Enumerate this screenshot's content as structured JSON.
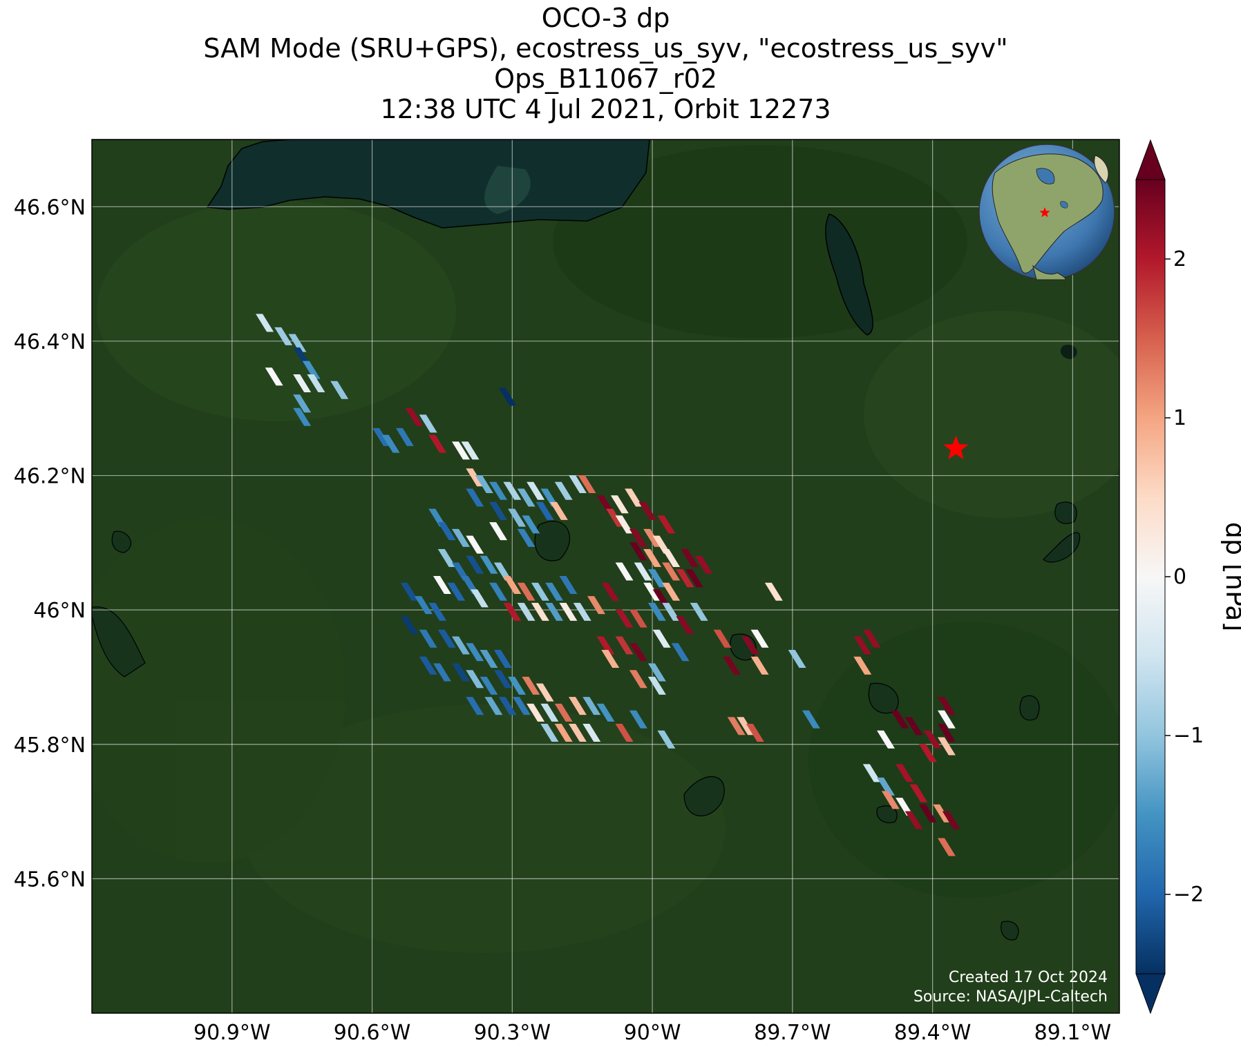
{
  "title": {
    "line1": "OCO-3 dp",
    "line2": "SAM Mode (SRU+GPS), ecostress_us_syv, \"ecostress_us_syv\"",
    "line3": "Ops_B11067_r02",
    "line4": "12:38 UTC 4 Jul 2021, Orbit 12273"
  },
  "credits": {
    "created": "Created 17 Oct 2024",
    "source": "Source: NASA/JPL-Caltech"
  },
  "map": {
    "lon_range": [
      -91.2,
      -89.0
    ],
    "lat_range": [
      45.4,
      46.7
    ],
    "lon_ticks": [
      {
        "value": -90.9,
        "label": "90.9°W"
      },
      {
        "value": -90.6,
        "label": "90.6°W"
      },
      {
        "value": -90.3,
        "label": "90.3°W"
      },
      {
        "value": -90.0,
        "label": "90°W"
      },
      {
        "value": -89.7,
        "label": "89.7°W"
      },
      {
        "value": -89.4,
        "label": "89.4°W"
      },
      {
        "value": -89.1,
        "label": "89.1°W"
      }
    ],
    "lat_ticks": [
      {
        "value": 46.6,
        "label": "46.6°N"
      },
      {
        "value": 46.4,
        "label": "46.4°N"
      },
      {
        "value": 46.2,
        "label": "46.2°N"
      },
      {
        "value": 46.0,
        "label": "46°N"
      },
      {
        "value": 45.8,
        "label": "45.8°N"
      },
      {
        "value": 45.6,
        "label": "45.6°N"
      }
    ],
    "gridlines": true,
    "basemap": "satellite imagery (forest, lakes, Lake Superior shoreline)",
    "target_marker": {
      "lon": -89.35,
      "lat": 46.24,
      "symbol": "red-star"
    },
    "inset_globe": {
      "location": "top-right",
      "content": "North America with red star"
    }
  },
  "colorbar": {
    "label": "dp [hPa]",
    "colormap": "RdBu_r",
    "range": [
      -2.5,
      2.5
    ],
    "ticks": [
      {
        "value": 2,
        "label": "2"
      },
      {
        "value": 1,
        "label": "1"
      },
      {
        "value": 0,
        "label": "0"
      },
      {
        "value": -1,
        "label": "−1"
      },
      {
        "value": -2,
        "label": "−2"
      }
    ],
    "extend": "both"
  },
  "colors": {
    "star": "#ff0000",
    "land_dark": "#1f3d18",
    "lake": "#0f2e2c"
  },
  "chart_data": {
    "type": "map-footprints",
    "variable": "dp",
    "units": "hPa",
    "soundings": [
      {
        "lon": -90.83,
        "lat": 46.42,
        "v": -0.5
      },
      {
        "lon": -90.79,
        "lat": 46.4,
        "v": -0.9
      },
      {
        "lon": -90.76,
        "lat": 46.39,
        "v": -1.0
      },
      {
        "lon": -90.81,
        "lat": 46.34,
        "v": 0.0
      },
      {
        "lon": -90.75,
        "lat": 46.37,
        "v": -2.4
      },
      {
        "lon": -90.73,
        "lat": 46.35,
        "v": -1.5
      },
      {
        "lon": -90.75,
        "lat": 46.33,
        "v": -0.2
      },
      {
        "lon": -90.72,
        "lat": 46.33,
        "v": -0.6
      },
      {
        "lon": -90.75,
        "lat": 46.3,
        "v": -1.3
      },
      {
        "lon": -90.75,
        "lat": 46.28,
        "v": -1.6
      },
      {
        "lon": -90.67,
        "lat": 46.32,
        "v": -1.0
      },
      {
        "lon": -90.31,
        "lat": 46.31,
        "v": -2.5
      },
      {
        "lon": -90.58,
        "lat": 46.25,
        "v": -1.9
      },
      {
        "lon": -90.56,
        "lat": 46.24,
        "v": -1.6
      },
      {
        "lon": -90.53,
        "lat": 46.25,
        "v": -1.8
      },
      {
        "lon": -90.51,
        "lat": 46.28,
        "v": 2.2
      },
      {
        "lon": -90.48,
        "lat": 46.27,
        "v": -0.9
      },
      {
        "lon": -90.46,
        "lat": 46.24,
        "v": 2.0
      },
      {
        "lon": -90.41,
        "lat": 46.23,
        "v": 0.0
      },
      {
        "lon": -90.39,
        "lat": 46.23,
        "v": -0.4
      },
      {
        "lon": -90.38,
        "lat": 46.19,
        "v": 0.7
      },
      {
        "lon": -90.36,
        "lat": 46.18,
        "v": -1.2
      },
      {
        "lon": -90.38,
        "lat": 46.16,
        "v": -1.9
      },
      {
        "lon": -90.33,
        "lat": 46.17,
        "v": -1.6
      },
      {
        "lon": -90.3,
        "lat": 46.17,
        "v": -0.8
      },
      {
        "lon": -90.27,
        "lat": 46.16,
        "v": -1.2
      },
      {
        "lon": -90.25,
        "lat": 46.17,
        "v": -0.5
      },
      {
        "lon": -90.22,
        "lat": 46.16,
        "v": -1.5
      },
      {
        "lon": -90.19,
        "lat": 46.17,
        "v": -0.9
      },
      {
        "lon": -90.16,
        "lat": 46.18,
        "v": -0.7
      },
      {
        "lon": -90.14,
        "lat": 46.18,
        "v": 1.4
      },
      {
        "lon": -90.33,
        "lat": 46.14,
        "v": -2.2
      },
      {
        "lon": -90.29,
        "lat": 46.13,
        "v": -1.1
      },
      {
        "lon": -90.26,
        "lat": 46.12,
        "v": -1.5
      },
      {
        "lon": -90.23,
        "lat": 46.14,
        "v": -2.0
      },
      {
        "lon": -90.2,
        "lat": 46.14,
        "v": 0.8
      },
      {
        "lon": -90.27,
        "lat": 46.1,
        "v": -1.7
      },
      {
        "lon": -90.33,
        "lat": 46.11,
        "v": 0.0
      },
      {
        "lon": -90.1,
        "lat": 46.15,
        "v": 2.4
      },
      {
        "lon": -90.07,
        "lat": 46.15,
        "v": 0.3
      },
      {
        "lon": -90.04,
        "lat": 46.16,
        "v": 0.6
      },
      {
        "lon": -90.01,
        "lat": 46.14,
        "v": 2.3
      },
      {
        "lon": -90.08,
        "lat": 46.13,
        "v": 1.8
      },
      {
        "lon": -90.06,
        "lat": 46.12,
        "v": 0.2
      },
      {
        "lon": -89.97,
        "lat": 46.12,
        "v": 2.0
      },
      {
        "lon": -90.03,
        "lat": 46.1,
        "v": 2.3
      },
      {
        "lon": -90.0,
        "lat": 46.1,
        "v": 1.2
      },
      {
        "lon": -89.98,
        "lat": 46.09,
        "v": 0.5
      },
      {
        "lon": -90.03,
        "lat": 46.08,
        "v": 2.5
      },
      {
        "lon": -90.0,
        "lat": 46.07,
        "v": 1.0
      },
      {
        "lon": -89.96,
        "lat": 46.07,
        "v": 0.3
      },
      {
        "lon": -89.92,
        "lat": 46.07,
        "v": 2.4
      },
      {
        "lon": -89.89,
        "lat": 46.06,
        "v": 2.2
      },
      {
        "lon": -90.06,
        "lat": 46.05,
        "v": 0.0
      },
      {
        "lon": -90.02,
        "lat": 46.05,
        "v": -0.4
      },
      {
        "lon": -89.99,
        "lat": 46.04,
        "v": -1.5
      },
      {
        "lon": -89.96,
        "lat": 46.05,
        "v": 1.3
      },
      {
        "lon": -89.93,
        "lat": 46.04,
        "v": 1.9
      },
      {
        "lon": -89.91,
        "lat": 46.04,
        "v": 2.6
      },
      {
        "lon": -90.0,
        "lat": 46.02,
        "v": 0.0
      },
      {
        "lon": -89.98,
        "lat": 46.01,
        "v": 2.6
      },
      {
        "lon": -89.96,
        "lat": 46.02,
        "v": 0.9
      },
      {
        "lon": -90.46,
        "lat": 46.13,
        "v": -1.6
      },
      {
        "lon": -90.44,
        "lat": 46.11,
        "v": -2.0
      },
      {
        "lon": -90.41,
        "lat": 46.1,
        "v": -1.2
      },
      {
        "lon": -90.38,
        "lat": 46.09,
        "v": 0.0
      },
      {
        "lon": -90.44,
        "lat": 46.07,
        "v": -1.0
      },
      {
        "lon": -90.41,
        "lat": 46.05,
        "v": -1.9
      },
      {
        "lon": -90.38,
        "lat": 46.06,
        "v": -2.2
      },
      {
        "lon": -90.35,
        "lat": 46.06,
        "v": -1.5
      },
      {
        "lon": -90.32,
        "lat": 46.05,
        "v": -1.0
      },
      {
        "lon": -90.45,
        "lat": 46.03,
        "v": 0.0
      },
      {
        "lon": -90.42,
        "lat": 46.02,
        "v": -2.0
      },
      {
        "lon": -90.39,
        "lat": 46.03,
        "v": -1.8
      },
      {
        "lon": -90.37,
        "lat": 46.01,
        "v": -0.6
      },
      {
        "lon": -90.33,
        "lat": 46.02,
        "v": -1.7
      },
      {
        "lon": -90.3,
        "lat": 46.03,
        "v": 1.0
      },
      {
        "lon": -90.27,
        "lat": 46.02,
        "v": 1.4
      },
      {
        "lon": -90.24,
        "lat": 46.02,
        "v": -1.0
      },
      {
        "lon": -90.21,
        "lat": 46.02,
        "v": -1.6
      },
      {
        "lon": -90.18,
        "lat": 46.03,
        "v": -1.8
      },
      {
        "lon": -90.3,
        "lat": 45.99,
        "v": 2.0
      },
      {
        "lon": -90.27,
        "lat": 45.99,
        "v": -0.7
      },
      {
        "lon": -90.24,
        "lat": 45.99,
        "v": 0.4
      },
      {
        "lon": -90.21,
        "lat": 45.99,
        "v": -1.4
      },
      {
        "lon": -90.18,
        "lat": 45.99,
        "v": 0.2
      },
      {
        "lon": -90.15,
        "lat": 45.99,
        "v": -0.7
      },
      {
        "lon": -90.12,
        "lat": 46.0,
        "v": 1.2
      },
      {
        "lon": -90.09,
        "lat": 46.02,
        "v": 2.2
      },
      {
        "lon": -90.06,
        "lat": 45.98,
        "v": 2.1
      },
      {
        "lon": -90.03,
        "lat": 45.98,
        "v": 1.6
      },
      {
        "lon": -89.99,
        "lat": 45.99,
        "v": -1.6
      },
      {
        "lon": -89.96,
        "lat": 45.99,
        "v": -0.9
      },
      {
        "lon": -89.93,
        "lat": 45.97,
        "v": 2.3
      },
      {
        "lon": -89.9,
        "lat": 45.99,
        "v": -1.0
      },
      {
        "lon": -89.98,
        "lat": 45.95,
        "v": -0.3
      },
      {
        "lon": -90.52,
        "lat": 46.02,
        "v": -2.2
      },
      {
        "lon": -90.49,
        "lat": 46.0,
        "v": -1.7
      },
      {
        "lon": -90.46,
        "lat": 45.99,
        "v": -2.0
      },
      {
        "lon": -90.52,
        "lat": 45.97,
        "v": -2.4
      },
      {
        "lon": -90.48,
        "lat": 45.95,
        "v": -1.8
      },
      {
        "lon": -90.44,
        "lat": 45.95,
        "v": -2.1
      },
      {
        "lon": -90.41,
        "lat": 45.94,
        "v": -1.2
      },
      {
        "lon": -90.38,
        "lat": 45.93,
        "v": -1.6
      },
      {
        "lon": -90.35,
        "lat": 45.92,
        "v": -1.4
      },
      {
        "lon": -90.32,
        "lat": 45.92,
        "v": -2.0
      },
      {
        "lon": -90.48,
        "lat": 45.91,
        "v": -2.1
      },
      {
        "lon": -90.45,
        "lat": 45.9,
        "v": -1.8
      },
      {
        "lon": -90.41,
        "lat": 45.9,
        "v": -2.3
      },
      {
        "lon": -90.38,
        "lat": 45.89,
        "v": -1.1
      },
      {
        "lon": -90.35,
        "lat": 45.88,
        "v": -1.7
      },
      {
        "lon": -90.32,
        "lat": 45.89,
        "v": -2.2
      },
      {
        "lon": -90.29,
        "lat": 45.88,
        "v": -1.5
      },
      {
        "lon": -90.26,
        "lat": 45.88,
        "v": 1.3
      },
      {
        "lon": -90.23,
        "lat": 45.87,
        "v": 0.6
      },
      {
        "lon": -90.38,
        "lat": 45.85,
        "v": -1.9
      },
      {
        "lon": -90.34,
        "lat": 45.85,
        "v": -1.3
      },
      {
        "lon": -90.31,
        "lat": 45.85,
        "v": -2.1
      },
      {
        "lon": -90.28,
        "lat": 45.85,
        "v": -1.8
      },
      {
        "lon": -90.25,
        "lat": 45.84,
        "v": 0.3
      },
      {
        "lon": -90.22,
        "lat": 45.84,
        "v": -0.6
      },
      {
        "lon": -90.19,
        "lat": 45.84,
        "v": 1.4
      },
      {
        "lon": -90.16,
        "lat": 45.85,
        "v": 0.8
      },
      {
        "lon": -90.13,
        "lat": 45.85,
        "v": -1.2
      },
      {
        "lon": -90.1,
        "lat": 45.84,
        "v": -1.5
      },
      {
        "lon": -90.22,
        "lat": 45.81,
        "v": -0.9
      },
      {
        "lon": -90.19,
        "lat": 45.81,
        "v": 1.0
      },
      {
        "lon": -90.16,
        "lat": 45.81,
        "v": 0.7
      },
      {
        "lon": -90.13,
        "lat": 45.81,
        "v": -0.4
      },
      {
        "lon": -90.06,
        "lat": 45.81,
        "v": 1.6
      },
      {
        "lon": -90.03,
        "lat": 45.83,
        "v": -1.6
      },
      {
        "lon": -89.97,
        "lat": 45.8,
        "v": -1.0
      },
      {
        "lon": -90.06,
        "lat": 45.94,
        "v": 1.8
      },
      {
        "lon": -90.03,
        "lat": 45.93,
        "v": 2.4
      },
      {
        "lon": -90.1,
        "lat": 45.94,
        "v": 2.0
      },
      {
        "lon": -90.09,
        "lat": 45.92,
        "v": 0.9
      },
      {
        "lon": -89.99,
        "lat": 45.9,
        "v": -1.2
      },
      {
        "lon": -90.03,
        "lat": 45.89,
        "v": 1.3
      },
      {
        "lon": -89.99,
        "lat": 45.88,
        "v": -0.6
      },
      {
        "lon": -89.94,
        "lat": 45.93,
        "v": -1.8
      },
      {
        "lon": -89.82,
        "lat": 45.82,
        "v": 1.3
      },
      {
        "lon": -89.8,
        "lat": 45.82,
        "v": 0.7
      },
      {
        "lon": -89.78,
        "lat": 45.81,
        "v": 1.6
      },
      {
        "lon": -89.85,
        "lat": 45.95,
        "v": 1.6
      },
      {
        "lon": -89.83,
        "lat": 45.91,
        "v": 2.4
      },
      {
        "lon": -89.79,
        "lat": 45.94,
        "v": 2.3
      },
      {
        "lon": -89.77,
        "lat": 45.91,
        "v": 0.9
      },
      {
        "lon": -89.77,
        "lat": 45.95,
        "v": 0.0
      },
      {
        "lon": -89.69,
        "lat": 45.92,
        "v": -1.0
      },
      {
        "lon": -89.66,
        "lat": 45.83,
        "v": -1.6
      },
      {
        "lon": -89.74,
        "lat": 46.02,
        "v": 0.4
      },
      {
        "lon": -89.55,
        "lat": 45.94,
        "v": 2.2
      },
      {
        "lon": -89.53,
        "lat": 45.95,
        "v": 2.2
      },
      {
        "lon": -89.55,
        "lat": 45.91,
        "v": 1.0
      },
      {
        "lon": -89.5,
        "lat": 45.8,
        "v": 0.0
      },
      {
        "lon": -89.47,
        "lat": 45.83,
        "v": 2.5
      },
      {
        "lon": -89.44,
        "lat": 45.82,
        "v": 2.5
      },
      {
        "lon": -89.4,
        "lat": 45.8,
        "v": 2.2
      },
      {
        "lon": -89.37,
        "lat": 45.83,
        "v": 0.0
      },
      {
        "lon": -89.37,
        "lat": 45.85,
        "v": 2.4
      },
      {
        "lon": -89.37,
        "lat": 45.81,
        "v": 2.5
      },
      {
        "lon": -89.37,
        "lat": 45.79,
        "v": 0.7
      },
      {
        "lon": -89.41,
        "lat": 45.78,
        "v": 2.0
      },
      {
        "lon": -89.53,
        "lat": 45.75,
        "v": -0.5
      },
      {
        "lon": -89.5,
        "lat": 45.73,
        "v": -1.3
      },
      {
        "lon": -89.46,
        "lat": 45.75,
        "v": 2.1
      },
      {
        "lon": -89.43,
        "lat": 45.72,
        "v": 2.0
      },
      {
        "lon": -89.49,
        "lat": 45.71,
        "v": 1.2
      },
      {
        "lon": -89.46,
        "lat": 45.7,
        "v": 0.0
      },
      {
        "lon": -89.44,
        "lat": 45.68,
        "v": 2.2
      },
      {
        "lon": -89.41,
        "lat": 45.69,
        "v": 2.5
      },
      {
        "lon": -89.38,
        "lat": 45.69,
        "v": 1.1
      },
      {
        "lon": -89.36,
        "lat": 45.68,
        "v": 2.4
      },
      {
        "lon": -89.37,
        "lat": 45.64,
        "v": 1.4
      }
    ]
  }
}
